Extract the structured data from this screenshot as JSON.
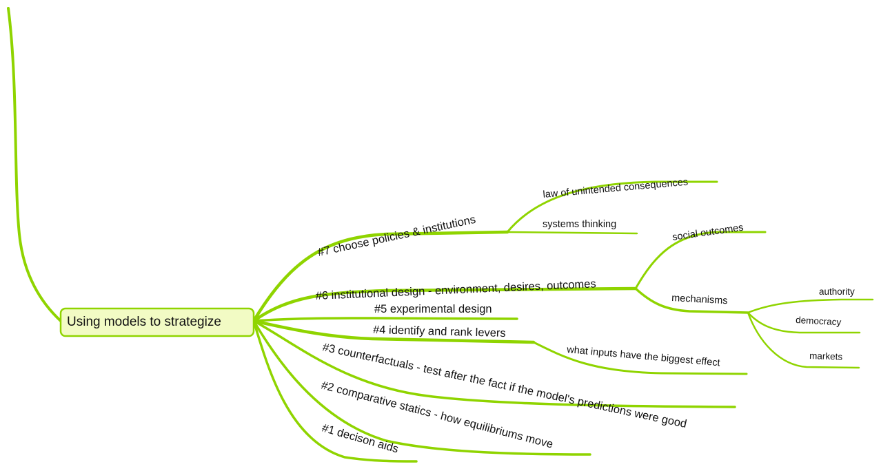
{
  "central_topic": "Using models to strategize",
  "branch_color": "#8fd400",
  "branches": [
    {
      "label": "#7 choose policies & institutions",
      "children": [
        {
          "label": "law of unintended consequences"
        },
        {
          "label": "systems thinking"
        }
      ]
    },
    {
      "label": "#6 institutional design - environment, desires, outcomes",
      "children": [
        {
          "label": "social outcomes"
        },
        {
          "label": "mechanisms",
          "children": [
            {
              "label": "authority"
            },
            {
              "label": "democracy"
            },
            {
              "label": "markets"
            }
          ]
        }
      ]
    },
    {
      "label": "#5 experimental design"
    },
    {
      "label": "#4 identify and rank levers",
      "children": [
        {
          "label": "what inputs have the biggest effect"
        }
      ]
    },
    {
      "label": "#3 counterfactuals - test after the fact if the model's predictions were good"
    },
    {
      "label": "#2 comparative statics - how equilibriums move"
    },
    {
      "label": "#1 decison aids"
    }
  ]
}
